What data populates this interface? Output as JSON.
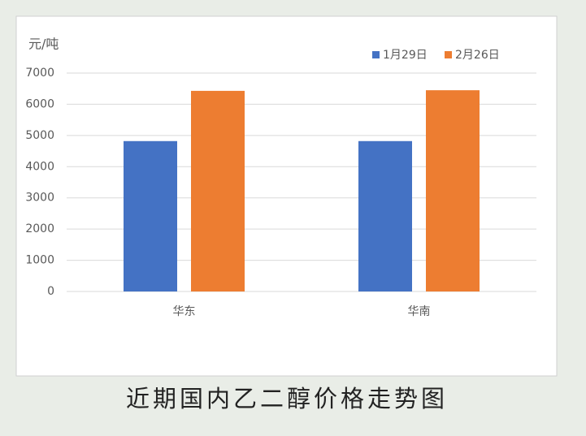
{
  "chart_data": {
    "type": "bar",
    "title": "近期国内乙二醇价格走势图",
    "y_label": "元/吨",
    "categories": [
      "华东",
      "华南"
    ],
    "series": [
      {
        "name": "1月29日",
        "color": "#4472c4",
        "values": [
          4820,
          4820
        ]
      },
      {
        "name": "2月26日",
        "color": "#ed7d31",
        "values": [
          6430,
          6450
        ]
      }
    ],
    "ylim": [
      0,
      7000
    ],
    "yticks": [
      0,
      1000,
      2000,
      3000,
      4000,
      5000,
      6000,
      7000
    ],
    "grid": true,
    "legend": "top-right"
  }
}
